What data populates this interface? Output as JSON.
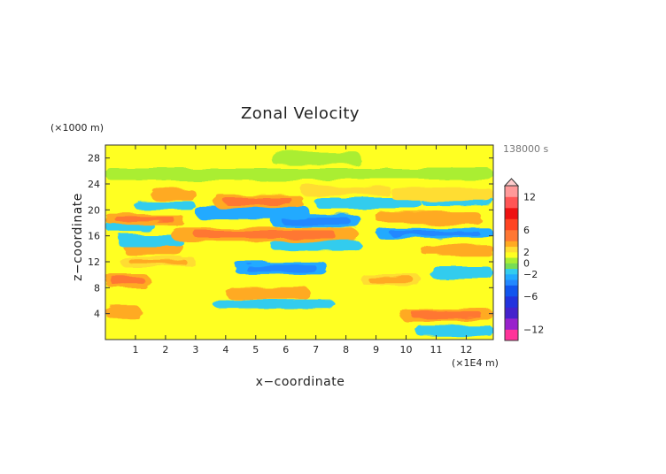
{
  "chart_data": {
    "type": "heatmap",
    "title": "Zonal Velocity",
    "xlabel": "x−coordinate",
    "ylabel": "z−coordinate",
    "x_unit": "(×1E4 m)",
    "y_unit": "(×1000 m)",
    "time_label": "138000 s",
    "xlim": [
      0,
      12.9
    ],
    "ylim": [
      0,
      30
    ],
    "x_ticks": [
      "1",
      "2",
      "3",
      "4",
      "5",
      "6",
      "7",
      "8",
      "9",
      "10",
      "11",
      "12"
    ],
    "y_ticks": [
      "4",
      "8",
      "12",
      "16",
      "20",
      "24",
      "28"
    ],
    "colorbar": {
      "ticks": [
        "12",
        "6",
        "2",
        "0",
        "−2",
        "−6",
        "−12"
      ],
      "tick_values": [
        12,
        6,
        2,
        0,
        -2,
        -6,
        -12
      ],
      "levels": [
        -14,
        -12,
        -10,
        -8,
        -6,
        -4,
        -3,
        -2,
        -1,
        0,
        1,
        2,
        3,
        4,
        6,
        8,
        10,
        12,
        14
      ],
      "colors": [
        "#ff3399",
        "#9922cc",
        "#4422cc",
        "#2233dd",
        "#1155ee",
        "#2288ff",
        "#22aaff",
        "#33ccee",
        "#77dd55",
        "#aaee33",
        "#ffff22",
        "#ffdd33",
        "#ffaa22",
        "#ff7733",
        "#ff4422",
        "#ee1111",
        "#ff5555",
        "#ff9999"
      ],
      "overflow_color": "#ffcccc"
    },
    "bands": [
      {
        "z": 1.4,
        "x0": 10.3,
        "x1": 12.9,
        "value": -1.3
      },
      {
        "z": 3.8,
        "x0": 9.8,
        "x1": 12.9,
        "value": 3.6
      },
      {
        "z": 4.2,
        "x0": 0.0,
        "x1": 1.2,
        "value": 3.3
      },
      {
        "z": 5.5,
        "x0": 3.6,
        "x1": 7.6,
        "value": -1.2
      },
      {
        "z": 7.2,
        "x0": 4.0,
        "x1": 6.8,
        "value": 3.2
      },
      {
        "z": 9.0,
        "x0": 0.0,
        "x1": 1.5,
        "value": 3.4
      },
      {
        "z": 9.2,
        "x0": 8.5,
        "x1": 10.5,
        "value": 2.6
      },
      {
        "z": 10.3,
        "x0": 10.8,
        "x1": 12.9,
        "value": -1.3
      },
      {
        "z": 11.0,
        "x0": 4.3,
        "x1": 7.4,
        "value": -2.3
      },
      {
        "z": 12.0,
        "x0": 0.5,
        "x1": 3.0,
        "value": 2.4
      },
      {
        "z": 13.8,
        "x0": 10.5,
        "x1": 12.9,
        "value": 3.3
      },
      {
        "z": 14.0,
        "x0": 0.6,
        "x1": 2.6,
        "value": 3.0
      },
      {
        "z": 14.5,
        "x0": 5.5,
        "x1": 8.5,
        "value": -1.4
      },
      {
        "z": 15.2,
        "x0": 0.4,
        "x1": 2.6,
        "value": -1.4
      },
      {
        "z": 16.2,
        "x0": 2.2,
        "x1": 8.4,
        "value": 3.6
      },
      {
        "z": 16.4,
        "x0": 9.0,
        "x1": 12.9,
        "value": -2.4
      },
      {
        "z": 17.5,
        "x0": 0.0,
        "x1": 1.6,
        "value": -1.3
      },
      {
        "z": 18.3,
        "x0": 5.5,
        "x1": 8.5,
        "value": -2.6
      },
      {
        "z": 18.6,
        "x0": 0.0,
        "x1": 2.6,
        "value": 3.7
      },
      {
        "z": 18.8,
        "x0": 9.0,
        "x1": 12.5,
        "value": 3.3
      },
      {
        "z": 19.6,
        "x0": 3.0,
        "x1": 6.8,
        "value": -2.2
      },
      {
        "z": 20.6,
        "x0": 1.0,
        "x1": 3.0,
        "value": -1.4
      },
      {
        "z": 21.0,
        "x0": 7.0,
        "x1": 10.5,
        "value": -1.3
      },
      {
        "z": 21.3,
        "x0": 3.6,
        "x1": 6.6,
        "value": 3.5
      },
      {
        "z": 21.4,
        "x0": 10.5,
        "x1": 12.9,
        "value": -1.2
      },
      {
        "z": 22.4,
        "x0": 1.5,
        "x1": 3.0,
        "value": 3.3
      },
      {
        "z": 22.4,
        "x0": 9.5,
        "x1": 12.9,
        "value": 2.3
      },
      {
        "z": 23.0,
        "x0": 6.5,
        "x1": 9.5,
        "value": 2.2
      },
      {
        "z": 25.5,
        "x0": 0.0,
        "x1": 12.9,
        "value": 0.5
      },
      {
        "z": 28.0,
        "x0": 5.5,
        "x1": 8.5,
        "value": 0.6
      }
    ]
  }
}
